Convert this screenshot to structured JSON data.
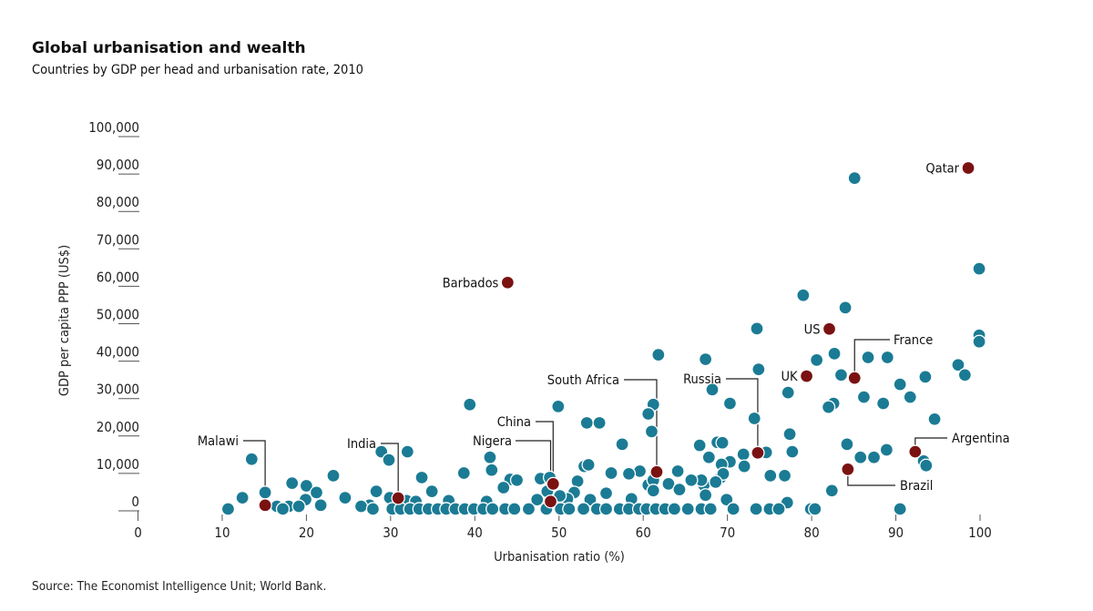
{
  "chart_data": {
    "type": "scatter",
    "title": "Global urbanisation and wealth",
    "subtitle": "Countries by GDP per head and urbanisation rate, 2010",
    "xlabel": "Urbanisation ratio (%)",
    "ylabel": "GDP per capita PPP (US$)",
    "source": "Source: The Economist Intelligence Unit; World Bank.",
    "xlim": [
      0,
      100
    ],
    "ylim": [
      0,
      100000
    ],
    "x_ticks": [
      0,
      10,
      20,
      30,
      40,
      50,
      60,
      70,
      80,
      90,
      100
    ],
    "x_tick_labels": [
      "0",
      "10",
      "20",
      "30",
      "40",
      "50",
      "60",
      "70",
      "80",
      "90",
      "100"
    ],
    "y_ticks": [
      0,
      10000,
      20000,
      30000,
      40000,
      50000,
      60000,
      70000,
      80000,
      90000,
      100000
    ],
    "y_tick_labels": [
      "0",
      "10,000",
      "20,000",
      "30,000",
      "40,000",
      "50,000",
      "60,000",
      "70,000",
      "80,000",
      "90,000",
      "100,000"
    ],
    "grid": false,
    "colors": {
      "countries": "#1b7b94",
      "highlighted": "#7a1212"
    },
    "highlighted": [
      {
        "name": "Qatar",
        "x": 98.6,
        "y": 91600
      },
      {
        "name": "Barbados",
        "x": 43.9,
        "y": 61000
      },
      {
        "name": "US",
        "x": 82.1,
        "y": 48600
      },
      {
        "name": "UK",
        "x": 79.4,
        "y": 36000
      },
      {
        "name": "France",
        "x": 85.1,
        "y": 35500
      },
      {
        "name": "Russia",
        "x": 73.6,
        "y": 15500
      },
      {
        "name": "Argentina",
        "x": 92.3,
        "y": 15800
      },
      {
        "name": "Brazil",
        "x": 84.3,
        "y": 11100
      },
      {
        "name": "South Africa",
        "x": 61.6,
        "y": 10400
      },
      {
        "name": "China",
        "x": 49.3,
        "y": 7200
      },
      {
        "name": "Nigera",
        "x": 49.0,
        "y": 2500
      },
      {
        "name": "India",
        "x": 30.9,
        "y": 3400
      },
      {
        "name": "Malawi",
        "x": 15.1,
        "y": 1500
      }
    ],
    "points": [
      [
        85.1,
        88900
      ],
      [
        99.9,
        64700
      ],
      [
        79.0,
        57600
      ],
      [
        84.0,
        54300
      ],
      [
        73.5,
        48700
      ],
      [
        99.9,
        46900
      ],
      [
        99.9,
        45200
      ],
      [
        61.8,
        41700
      ],
      [
        67.4,
        40500
      ],
      [
        82.7,
        42000
      ],
      [
        80.6,
        40300
      ],
      [
        86.7,
        41000
      ],
      [
        89.0,
        41000
      ],
      [
        73.7,
        37800
      ],
      [
        97.4,
        39000
      ],
      [
        98.2,
        36300
      ],
      [
        83.5,
        36300
      ],
      [
        93.5,
        35800
      ],
      [
        90.5,
        33800
      ],
      [
        68.2,
        32400
      ],
      [
        77.2,
        31600
      ],
      [
        39.4,
        28400
      ],
      [
        70.3,
        28700
      ],
      [
        86.2,
        30400
      ],
      [
        88.5,
        28700
      ],
      [
        91.7,
        30400
      ],
      [
        82.6,
        28700
      ],
      [
        82.0,
        27700
      ],
      [
        61.2,
        28400
      ],
      [
        49.9,
        27900
      ],
      [
        94.6,
        24500
      ],
      [
        60.6,
        25900
      ],
      [
        73.2,
        24700
      ],
      [
        77.4,
        20500
      ],
      [
        53.3,
        23500
      ],
      [
        54.8,
        23500
      ],
      [
        61.0,
        21200
      ],
      [
        57.5,
        17800
      ],
      [
        68.8,
        18300
      ],
      [
        69.4,
        18200
      ],
      [
        66.7,
        17500
      ],
      [
        84.2,
        17800
      ],
      [
        77.7,
        15800
      ],
      [
        88.9,
        16300
      ],
      [
        13.5,
        13800
      ],
      [
        28.9,
        15800
      ],
      [
        32.0,
        15800
      ],
      [
        41.8,
        14300
      ],
      [
        29.8,
        13600
      ],
      [
        71.9,
        15100
      ],
      [
        72.0,
        11900
      ],
      [
        74.6,
        15600
      ],
      [
        67.8,
        14300
      ],
      [
        70.3,
        13100
      ],
      [
        69.3,
        12400
      ],
      [
        85.8,
        14300
      ],
      [
        87.4,
        14300
      ],
      [
        93.3,
        13300
      ],
      [
        93.6,
        12100
      ],
      [
        53.0,
        11900
      ],
      [
        53.5,
        12300
      ],
      [
        42.0,
        10900
      ],
      [
        38.7,
        10100
      ],
      [
        59.6,
        10600
      ],
      [
        56.2,
        10100
      ],
      [
        64.1,
        10600
      ],
      [
        76.8,
        9400
      ],
      [
        75.1,
        9400
      ],
      [
        69.2,
        8900
      ],
      [
        67.2,
        6900
      ],
      [
        69.5,
        9900
      ],
      [
        66.9,
        8200
      ],
      [
        68.6,
        7700
      ],
      [
        60.6,
        6900
      ],
      [
        61.2,
        8200
      ],
      [
        63.0,
        7200
      ],
      [
        65.7,
        8200
      ],
      [
        23.2,
        9400
      ],
      [
        33.7,
        8900
      ],
      [
        44.2,
        8400
      ],
      [
        45.0,
        8200
      ],
      [
        47.8,
        8600
      ],
      [
        48.9,
        8900
      ],
      [
        58.3,
        9900
      ],
      [
        52.2,
        7900
      ],
      [
        18.3,
        7400
      ],
      [
        20.0,
        6700
      ],
      [
        21.2,
        4900
      ],
      [
        28.3,
        5200
      ],
      [
        34.9,
        5200
      ],
      [
        43.4,
        6200
      ],
      [
        47.4,
        3000
      ],
      [
        48.6,
        5200
      ],
      [
        51.8,
        4900
      ],
      [
        55.6,
        4700
      ],
      [
        53.7,
        3000
      ],
      [
        58.6,
        3200
      ],
      [
        61.2,
        5400
      ],
      [
        64.3,
        5700
      ],
      [
        67.4,
        4200
      ],
      [
        69.9,
        3000
      ],
      [
        77.1,
        2200
      ],
      [
        82.4,
        5400
      ],
      [
        15.1,
        4900
      ],
      [
        12.4,
        3500
      ],
      [
        24.6,
        3500
      ],
      [
        19.9,
        3000
      ],
      [
        17.9,
        1200
      ],
      [
        16.5,
        1200
      ],
      [
        19.1,
        1200
      ],
      [
        21.7,
        1500
      ],
      [
        27.5,
        1500
      ],
      [
        26.5,
        1200
      ],
      [
        29.9,
        3500
      ],
      [
        31.9,
        2700
      ],
      [
        33.0,
        2500
      ],
      [
        36.9,
        2700
      ],
      [
        41.4,
        2500
      ],
      [
        51.0,
        3200
      ],
      [
        50.1,
        4000
      ],
      [
        10.7,
        500
      ],
      [
        17.2,
        500
      ],
      [
        27.9,
        500
      ],
      [
        30.2,
        500
      ],
      [
        31.2,
        500
      ],
      [
        32.3,
        500
      ],
      [
        33.4,
        500
      ],
      [
        34.5,
        500
      ],
      [
        35.6,
        500
      ],
      [
        36.6,
        500
      ],
      [
        37.7,
        500
      ],
      [
        38.8,
        500
      ],
      [
        39.9,
        500
      ],
      [
        41.0,
        500
      ],
      [
        42.1,
        500
      ],
      [
        43.6,
        500
      ],
      [
        44.7,
        500
      ],
      [
        46.4,
        500
      ],
      [
        48.5,
        500
      ],
      [
        50.2,
        500
      ],
      [
        51.2,
        500
      ],
      [
        52.9,
        500
      ],
      [
        54.5,
        500
      ],
      [
        55.6,
        500
      ],
      [
        57.2,
        500
      ],
      [
        58.3,
        500
      ],
      [
        59.5,
        500
      ],
      [
        60.4,
        500
      ],
      [
        61.5,
        500
      ],
      [
        62.6,
        500
      ],
      [
        63.7,
        500
      ],
      [
        65.3,
        500
      ],
      [
        66.9,
        500
      ],
      [
        68.0,
        500
      ],
      [
        70.7,
        500
      ],
      [
        73.4,
        500
      ],
      [
        75.0,
        500
      ],
      [
        76.1,
        500
      ],
      [
        79.9,
        500
      ],
      [
        80.4,
        500
      ],
      [
        90.5,
        500
      ]
    ]
  }
}
